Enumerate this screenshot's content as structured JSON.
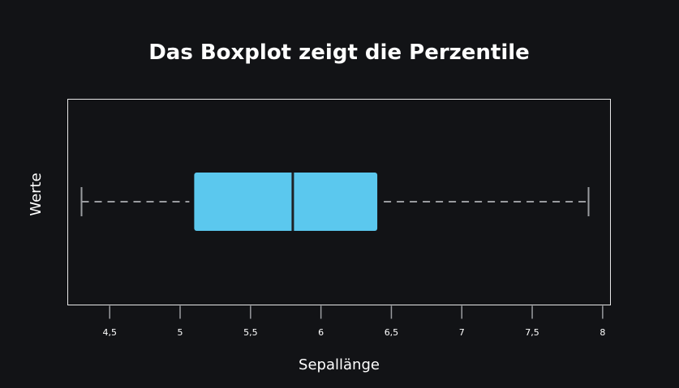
{
  "chart_data": {
    "type": "box",
    "orientation": "horizontal",
    "title": "Das Boxplot zeigt die Perzentile",
    "xlabel": "Sepallänge",
    "ylabel": "Werte",
    "xlim": [
      4.3,
      7.9
    ],
    "xticks": [
      4.5,
      5,
      5.5,
      6,
      6.5,
      7,
      7.5,
      8
    ],
    "xtick_labels": [
      "4,5",
      "5",
      "5,5",
      "6",
      "6,5",
      "7",
      "7,5",
      "8"
    ],
    "series": [
      {
        "min": 4.3,
        "q1": 5.1,
        "median": 5.8,
        "q3": 6.4,
        "max": 7.9
      }
    ],
    "grid": false,
    "colors": {
      "background": "#121316",
      "box_fill": "#5bc8ee",
      "median": "#1e2226",
      "whisker": "#9a9ca0",
      "frame": "#e8e8e8",
      "text": "#ffffff"
    }
  }
}
